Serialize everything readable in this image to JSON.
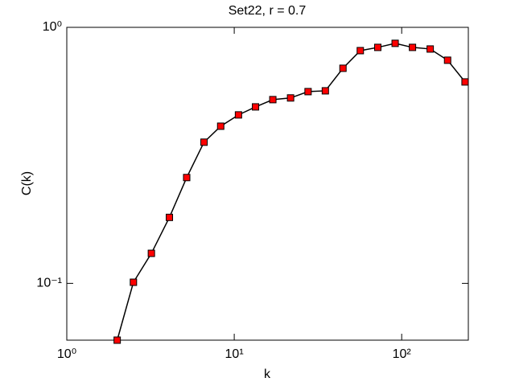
{
  "chart_data": {
    "type": "line",
    "title": "Set22, r = 0.7",
    "xlabel": "k",
    "ylabel": "C(k)",
    "x": [
      2,
      2.5,
      3.2,
      4.1,
      5.2,
      6.6,
      8.3,
      10.6,
      13.4,
      17,
      21.7,
      27.6,
      35,
      44.6,
      56.6,
      72,
      91.4,
      116,
      148,
      188,
      239
    ],
    "series": [
      {
        "color": "#ff0000",
        "line_color": "#000000",
        "values": [
          0.06,
          0.101,
          0.131,
          0.181,
          0.259,
          0.356,
          0.411,
          0.455,
          0.489,
          0.522,
          0.53,
          0.561,
          0.565,
          0.692,
          0.811,
          0.835,
          0.866,
          0.835,
          0.823,
          0.744,
          0.612
        ]
      }
    ],
    "xscale": "log",
    "yscale": "log",
    "xlim": [
      1,
      250
    ],
    "ylim": [
      0.06,
      1
    ],
    "xticks": [
      {
        "value": 1,
        "label": "10⁰"
      },
      {
        "value": 10,
        "label": "10¹"
      },
      {
        "value": 100,
        "label": "10²"
      }
    ],
    "yticks": [
      {
        "value": 0.1,
        "label": "10⁻¹"
      },
      {
        "value": 1,
        "label": "10⁰"
      }
    ]
  }
}
